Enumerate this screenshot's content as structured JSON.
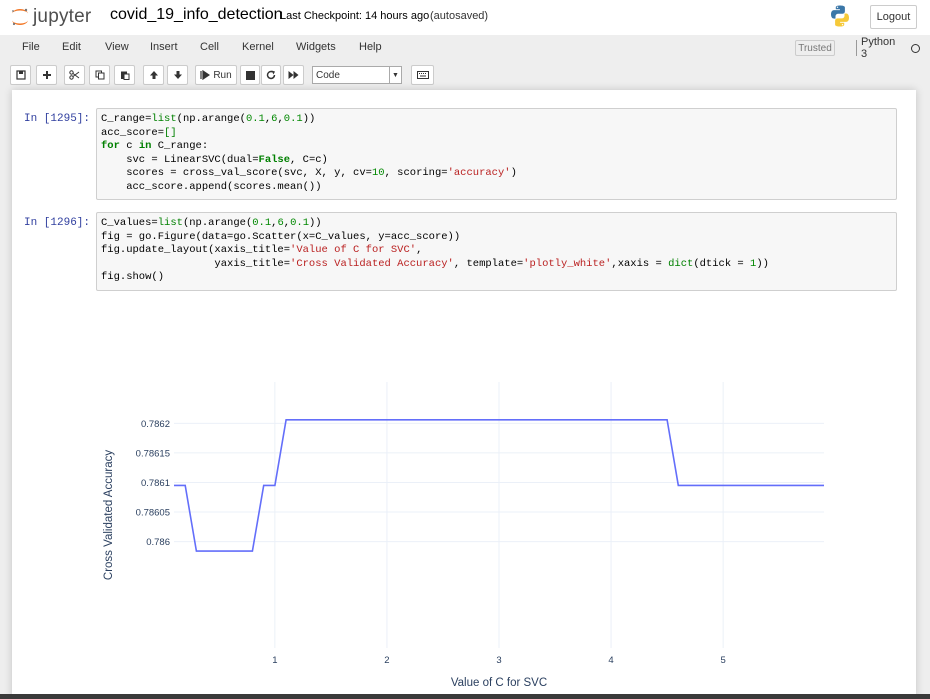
{
  "header": {
    "logo_text": "jupyter",
    "notebook_name": "covid_19_info_detection",
    "checkpoint": "Last Checkpoint: 14 hours ago",
    "autosave": "(autosaved)",
    "logout_label": "Logout"
  },
  "menubar": {
    "items": [
      "File",
      "Edit",
      "View",
      "Insert",
      "Cell",
      "Kernel",
      "Widgets",
      "Help"
    ],
    "trusted": "Trusted",
    "kernel_name": "Python 3"
  },
  "toolbar": {
    "run_label": "Run",
    "cell_type": "Code",
    "icons": [
      "save-icon",
      "plus-icon",
      "scissors-icon",
      "copy-icon",
      "paste-icon",
      "arrow-up-icon",
      "arrow-down-icon",
      "run-icon",
      "stop-icon",
      "restart-icon",
      "fast-forward-icon",
      "keyboard-icon"
    ]
  },
  "cells": [
    {
      "prompt": "In [1295]:",
      "lines": [
        "C_range=list(np.arange(0.1,6,0.1))",
        "acc_score=[]",
        "for c in C_range:",
        "    svc = LinearSVC(dual=False, C=c)",
        "    scores = cross_val_score(svc, X, y, cv=10, scoring='accuracy')",
        "    acc_score.append(scores.mean())"
      ]
    },
    {
      "prompt": "In [1296]:",
      "lines": [
        "C_values=list(np.arange(0.1,6,0.1))",
        "fig = go.Figure(data=go.Scatter(x=C_values, y=acc_score))",
        "fig.update_layout(xaxis_title='Value of C for SVC',",
        "                  yaxis_title='Cross Validated Accuracy', template='plotly_white',xaxis = dict(dtick = 1))",
        "fig.show()"
      ]
    }
  ],
  "chart_data": {
    "type": "line",
    "xlabel": "Value of C for SVC",
    "ylabel": "Cross Validated Accuracy",
    "x_ticks": [
      "1",
      "2",
      "3",
      "4",
      "5"
    ],
    "y_ticks": [
      "0.786",
      "0.78605",
      "0.7861",
      "0.78615",
      "0.7862"
    ],
    "xlim": [
      0.1,
      5.9
    ],
    "ylim": [
      0.78582,
      0.78627
    ],
    "line_color": "#636efa",
    "grid": true,
    "series": [
      {
        "x": [
          0.1,
          0.2,
          0.3,
          0.4,
          0.5,
          0.6,
          0.7,
          0.8,
          0.9,
          1.0,
          1.1,
          1.2,
          1.3,
          1.4,
          1.5,
          1.6,
          1.7,
          1.8,
          1.9,
          2.0,
          2.1,
          2.2,
          2.3,
          2.4,
          2.5,
          2.6,
          2.7,
          2.8,
          2.9,
          3.0,
          3.1,
          3.2,
          3.3,
          3.4,
          3.5,
          3.6,
          3.7,
          3.8,
          3.9,
          4.0,
          4.1,
          4.2,
          4.3,
          4.4,
          4.5,
          4.6,
          4.7,
          4.8,
          4.9,
          5.0,
          5.1,
          5.2,
          5.3,
          5.4,
          5.5,
          5.6,
          5.7,
          5.8,
          5.9
        ],
        "y": [
          0.786095,
          0.786095,
          0.785984,
          0.785984,
          0.785984,
          0.785984,
          0.785984,
          0.785984,
          0.786095,
          0.786095,
          0.786206,
          0.786206,
          0.786206,
          0.786206,
          0.786206,
          0.786206,
          0.786206,
          0.786206,
          0.786206,
          0.786206,
          0.786206,
          0.786206,
          0.786206,
          0.786206,
          0.786206,
          0.786206,
          0.786206,
          0.786206,
          0.786206,
          0.786206,
          0.786206,
          0.786206,
          0.786206,
          0.786206,
          0.786206,
          0.786206,
          0.786206,
          0.786206,
          0.786206,
          0.786206,
          0.786206,
          0.786206,
          0.786206,
          0.786206,
          0.786206,
          0.786095,
          0.786095,
          0.786095,
          0.786095,
          0.786095,
          0.786095,
          0.786095,
          0.786095,
          0.786095,
          0.786095,
          0.786095,
          0.786095,
          0.786095,
          0.786095
        ]
      }
    ]
  },
  "colors": {
    "prompt": "#303f9f",
    "line": "#636efa",
    "axis_text": "#2a3f5f"
  }
}
